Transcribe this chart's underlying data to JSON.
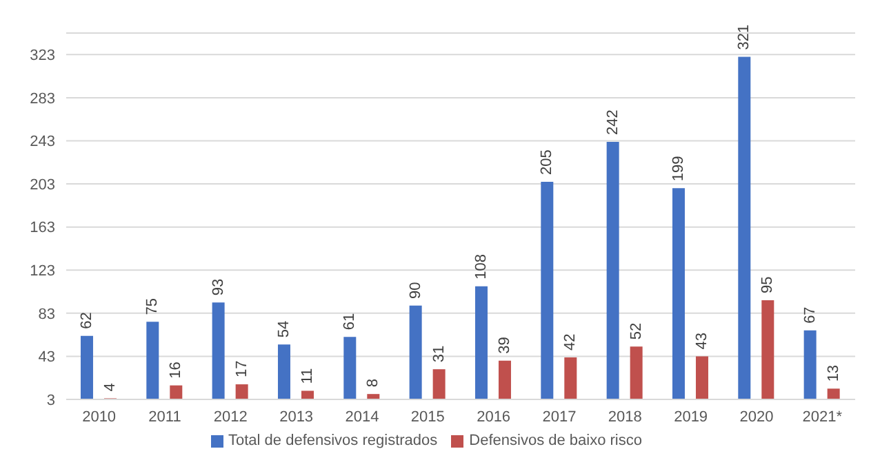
{
  "chart_data": {
    "type": "bar",
    "categories": [
      "2010",
      "2011",
      "2012",
      "2013",
      "2014",
      "2015",
      "2016",
      "2017",
      "2018",
      "2019",
      "2020",
      "2021*"
    ],
    "series": [
      {
        "name": "Total de defensivos registrados",
        "color": "#4472c4",
        "values": [
          62,
          75,
          93,
          54,
          61,
          90,
          108,
          205,
          242,
          199,
          321,
          67
        ]
      },
      {
        "name": "Defensivos de baixo risco",
        "color": "#c0504d",
        "values": [
          4,
          16,
          17,
          11,
          8,
          31,
          39,
          42,
          52,
          43,
          95,
          13
        ]
      }
    ],
    "ylim": [
      3,
      343
    ],
    "yticks": [
      3,
      43,
      83,
      123,
      163,
      203,
      243,
      283,
      323
    ],
    "grid": "y",
    "legend": "bottom",
    "data_labels": true
  }
}
